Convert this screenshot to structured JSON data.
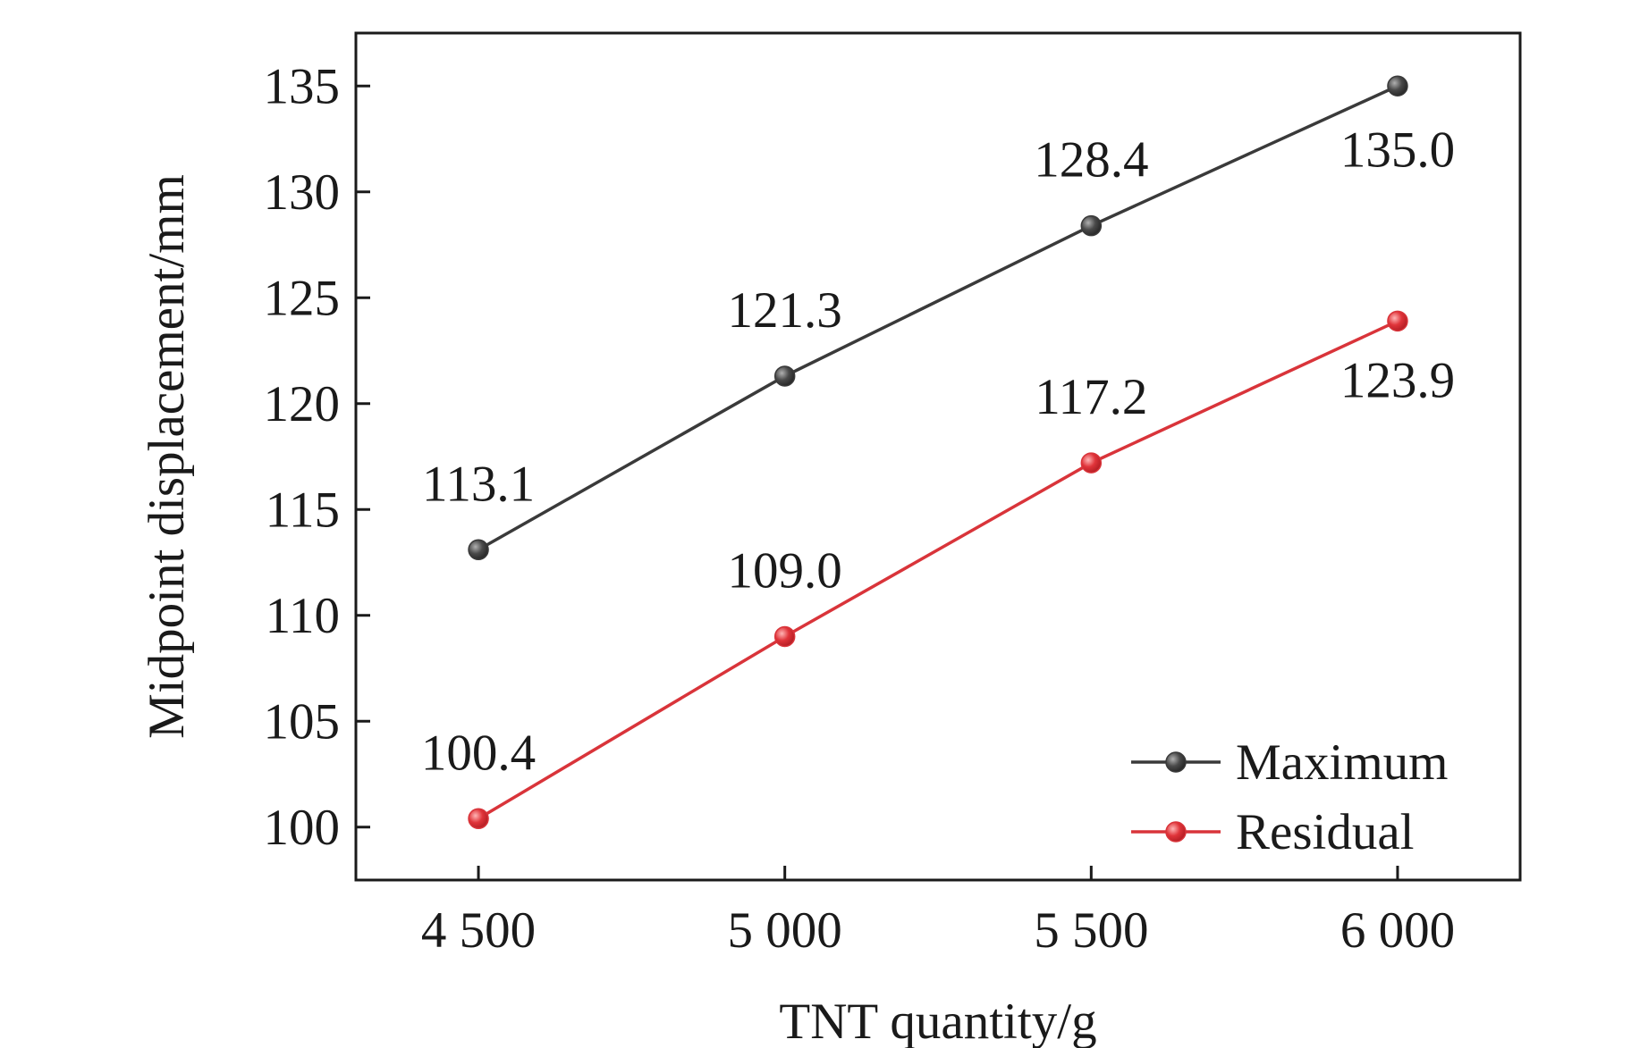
{
  "chart_data": {
    "type": "line",
    "title": "",
    "xlabel": "TNT quantity/g",
    "ylabel": "Midpoint displacement/mm",
    "x": [
      4500,
      5000,
      5500,
      6000
    ],
    "x_tick_labels": [
      "4 500",
      "5 000",
      "5 500",
      "6 000"
    ],
    "xlim": [
      4300,
      6200
    ],
    "ylim": [
      97.5,
      137.5
    ],
    "y_ticks": [
      100,
      105,
      110,
      115,
      120,
      125,
      130,
      135
    ],
    "y_tick_labels": [
      "100",
      "105",
      "110",
      "115",
      "120",
      "125",
      "130",
      "135"
    ],
    "grid": false,
    "legend_position": "bottom-right",
    "series": [
      {
        "name": "Maximum",
        "color": "#3a3a3a",
        "values": [
          113.1,
          121.3,
          128.4,
          135.0
        ],
        "labels": [
          "113.1",
          "121.3",
          "128.4",
          "135.0"
        ]
      },
      {
        "name": "Residual",
        "color": "#d9343a",
        "values": [
          100.4,
          109.0,
          117.2,
          123.9
        ],
        "labels": [
          "100.4",
          "109.0",
          "117.2",
          "123.9"
        ]
      }
    ]
  }
}
